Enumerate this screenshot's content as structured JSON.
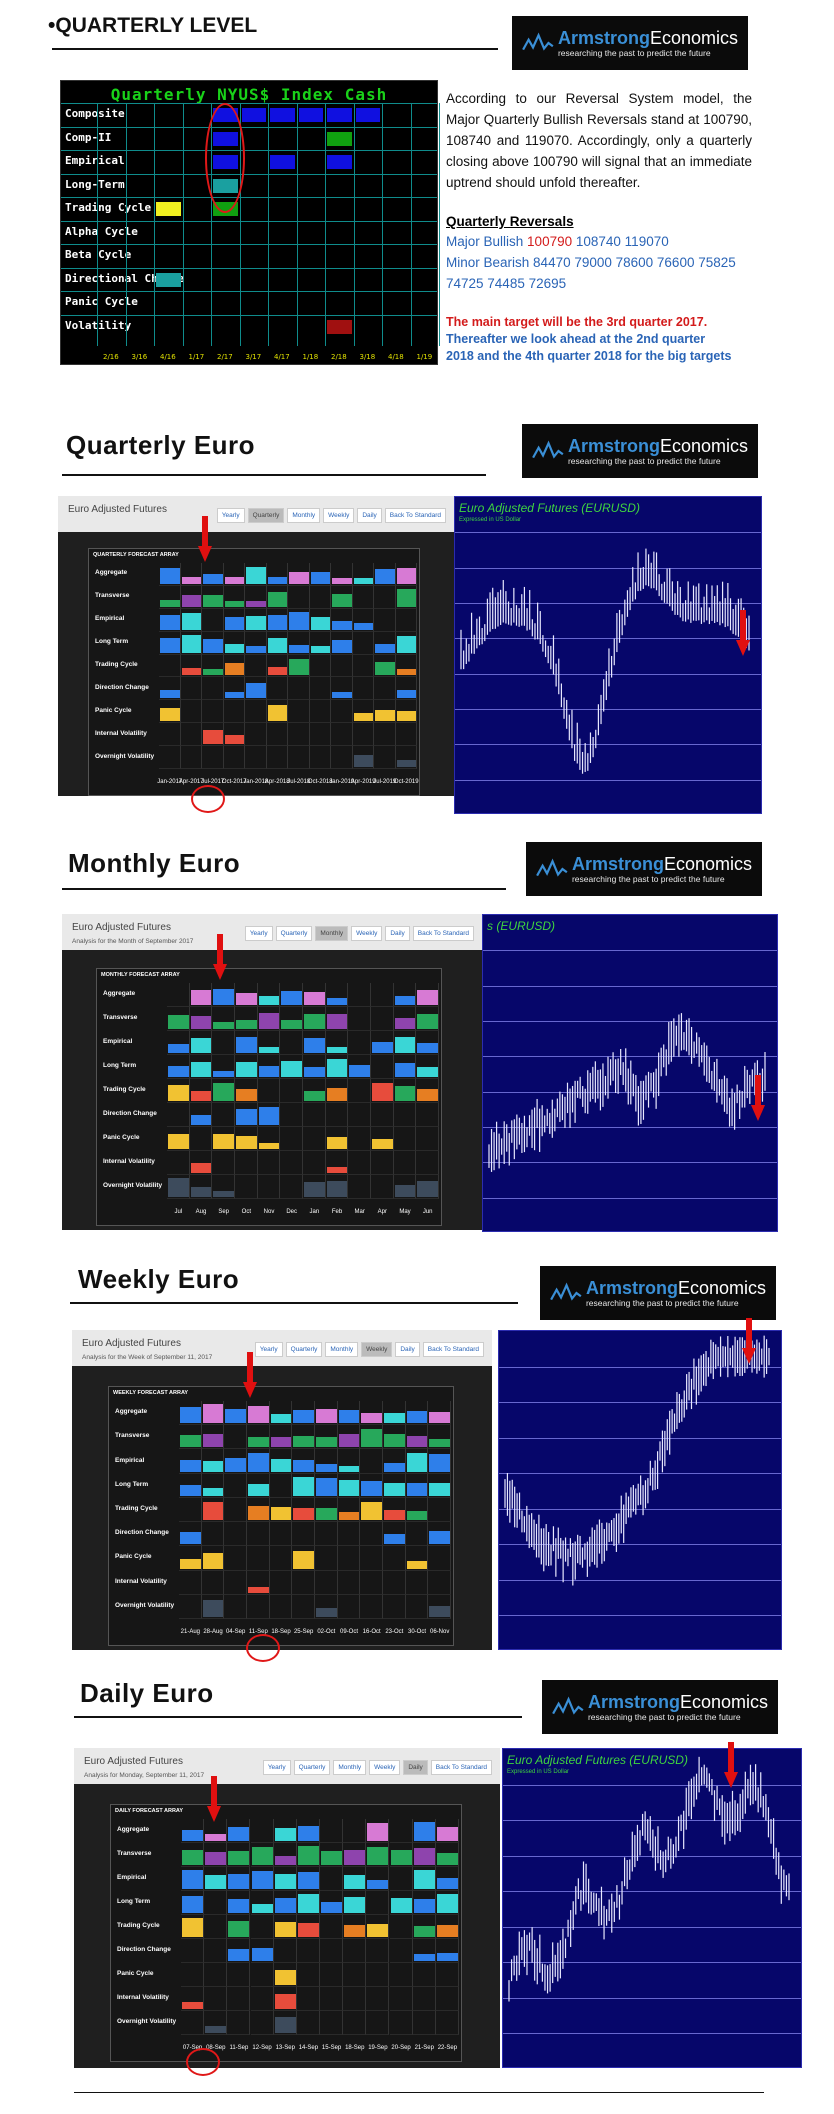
{
  "header": {
    "bullet": "•",
    "title": "QUARTERLY LEVEL"
  },
  "logo": {
    "name_bold": "Armstrong",
    "name_rest": "Economics",
    "tagline": "researching the past to predict the future"
  },
  "quarterly_level": {
    "panel_title": "Quarterly NYUS$ Index Cash",
    "rows": [
      "Composite",
      "Comp-II",
      "Empirical",
      "Long-Term",
      "Trading Cycle",
      "Alpha Cycle",
      "Beta Cycle",
      "Directional Change",
      "Panic Cycle",
      "Volatility"
    ],
    "dates": [
      "2/16",
      "3/16",
      "4/16",
      "1/17",
      "2/17",
      "3/17",
      "4/17",
      "1/18",
      "2/18",
      "3/18",
      "4/18",
      "1/19"
    ],
    "text": "According to our Reversal System model, the Major Quarterly Bullish Reversals stand at 100790, 108740 and 119070. Accordingly, only a quarterly closing above 100790 will signal that an immediate uptrend should unfold thereafter.",
    "reversals_heading": "Quarterly Reversals",
    "major_bullish_label": "Major Bullish",
    "major_bullish_first": "100790",
    "major_bullish_rest": "108740 119070",
    "minor_bearish_label": "Minor Bearish",
    "minor_bearish_values": "84470 79000 78600 76600 75825 74725 74485 72695",
    "target_red": "The main target will be the 3rd quarter 2017.",
    "target_blue": "Thereafter we look ahead at the 2nd quarter 2018 and the 4th quarter 2018 for the big targets"
  },
  "sections": [
    {
      "title": "Quarterly  Euro",
      "panel_title": "Euro Adjusted Futures",
      "panel_subtitle": "",
      "grid_title": "QUARTERLY FORECAST ARRAY",
      "active_tab": "Quarterly",
      "dates": [
        "Jan-2017",
        "Apr-2017",
        "Jul-2017",
        "Oct-2017",
        "Jan-2018",
        "Apr-2018",
        "Jul-2018",
        "Oct-2018",
        "Jan-2019",
        "Apr-2019",
        "Jul-2019",
        "Oct-2019"
      ],
      "chart_title": "Euro Adjusted Futures (EURUSD)",
      "chart_subtitle": "Expressed in US Dollar"
    },
    {
      "title": "Monthly  Euro",
      "panel_title": "Euro Adjusted Futures",
      "panel_subtitle": "Analysis for the Month of September 2017",
      "grid_title": "MONTHLY FORECAST ARRAY",
      "active_tab": "Monthly",
      "dates": [
        "Jul",
        "Aug",
        "Sep",
        "Oct",
        "Nov",
        "Dec",
        "Jan",
        "Feb",
        "Mar",
        "Apr",
        "May",
        "Jun"
      ],
      "chart_title": "s (EURUSD)",
      "chart_subtitle": ""
    },
    {
      "title": "Weekly  Euro",
      "panel_title": "Euro Adjusted Futures",
      "panel_subtitle": "Analysis for the Week of September 11, 2017",
      "grid_title": "WEEKLY FORECAST ARRAY",
      "active_tab": "Weekly",
      "dates": [
        "21-Aug",
        "28-Aug",
        "04-Sep",
        "11-Sep",
        "18-Sep",
        "25-Sep",
        "02-Oct",
        "09-Oct",
        "16-Oct",
        "23-Oct",
        "30-Oct",
        "06-Nov"
      ],
      "chart_title": "",
      "chart_subtitle": ""
    },
    {
      "title": "Daily  Euro",
      "panel_title": "Euro Adjusted Futures",
      "panel_subtitle": "Analysis for Monday, September 11, 2017",
      "grid_title": "DAILY FORECAST ARRAY",
      "active_tab": "Daily",
      "dates": [
        "07-Sep",
        "08-Sep",
        "11-Sep",
        "12-Sep",
        "13-Sep",
        "14-Sep",
        "15-Sep",
        "18-Sep",
        "19-Sep",
        "20-Sep",
        "21-Sep",
        "22-Sep"
      ],
      "chart_title": "Euro Adjusted Futures (EURUSD)",
      "chart_subtitle": "Expressed in US Dollar"
    }
  ],
  "tabs": [
    "Yearly",
    "Quarterly",
    "Monthly",
    "Weekly",
    "Daily",
    "Back To Standard"
  ],
  "array_rows": [
    "Aggregate",
    "Transverse",
    "Empirical",
    "Long Term",
    "Trading Cycle",
    "Direction Change",
    "Panic Cycle",
    "Internal Volatility",
    "Overnight Volatility"
  ],
  "colors": {
    "blue": "#2e7fea",
    "pink": "#d77ad4",
    "green": "#27a85b",
    "purple": "#8e44ad",
    "cyan": "#3ad6d6",
    "yellow": "#f1c232",
    "red": "#e74c3c",
    "orange": "#e67e22",
    "slate": "#3d4b5c",
    "chart_bg": "#06066a"
  }
}
